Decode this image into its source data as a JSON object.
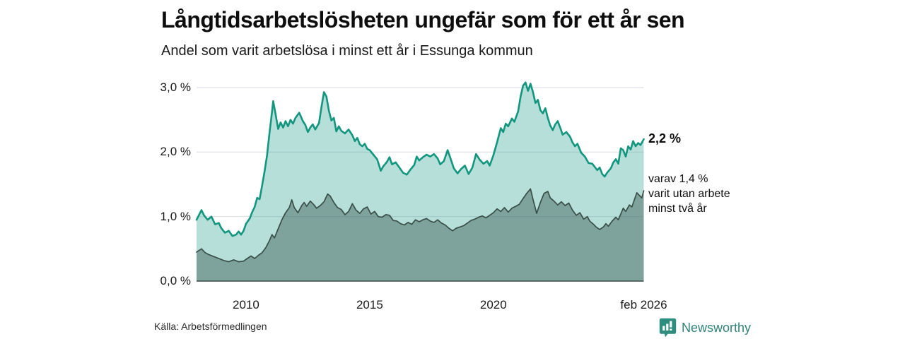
{
  "header": {
    "title": "Långtidsarbetslösheten ungefär som för ett år sen",
    "subtitle": "Andel som varit arbetslösa i minst ett år i Essunga kommun"
  },
  "footer": {
    "source": "Källa: Arbetsförmedlingen",
    "brand": "Newsworthy",
    "brand_color": "#31837a"
  },
  "chart_data": {
    "type": "area",
    "title": "Långtidsarbetslösheten ungefär som för ett år sen",
    "subtitle": "Andel som varit arbetslösa i minst ett år i Essunga kommun",
    "unit": "percent",
    "grid": "horizontal",
    "x_axis": {
      "range": [
        2008.0,
        2026.08
      ],
      "ticks": [
        {
          "label": "2010",
          "value": 2010
        },
        {
          "label": "2015",
          "value": 2015
        },
        {
          "label": "2020",
          "value": 2020
        },
        {
          "label": "feb 2026",
          "value": 2026.08
        }
      ]
    },
    "y_axis": {
      "range": [
        0,
        3.3
      ],
      "ticks": [
        {
          "label": "0,0 %",
          "value": 0
        },
        {
          "label": "1,0 %",
          "value": 1
        },
        {
          "label": "2,0 %",
          "value": 2
        },
        {
          "label": "3,0 %",
          "value": 3
        }
      ]
    },
    "colors": {
      "series1_line": "#12967f",
      "series1_fill": "rgba(18,150,132,0.30)",
      "series2_line": "#3a4e47",
      "series2_fill": "rgba(58,90,80,0.45)",
      "gridline": "#dfdfe6",
      "baseline": "#3a4e47"
    },
    "annotations": [
      {
        "text": "2,2 %",
        "value": 2.2,
        "bold": true
      },
      {
        "lines": [
          "varav 1,4 %",
          "varit utan arbete",
          "minst två år"
        ],
        "value": 1.4,
        "bold": false
      }
    ],
    "series": [
      {
        "name": "Andel arbetslösa minst ett år",
        "last_value": 2.2,
        "points": [
          [
            2008.0,
            0.95
          ],
          [
            2008.2,
            1.1
          ],
          [
            2008.3,
            1.02
          ],
          [
            2008.45,
            0.95
          ],
          [
            2008.6,
            1.0
          ],
          [
            2008.75,
            0.88
          ],
          [
            2008.9,
            0.9
          ],
          [
            2009.0,
            0.82
          ],
          [
            2009.15,
            0.75
          ],
          [
            2009.3,
            0.78
          ],
          [
            2009.45,
            0.7
          ],
          [
            2009.6,
            0.72
          ],
          [
            2009.7,
            0.77
          ],
          [
            2009.8,
            0.72
          ],
          [
            2009.9,
            0.78
          ],
          [
            2010.0,
            0.89
          ],
          [
            2010.15,
            0.97
          ],
          [
            2010.25,
            1.07
          ],
          [
            2010.35,
            1.15
          ],
          [
            2010.45,
            1.29
          ],
          [
            2010.55,
            1.27
          ],
          [
            2010.65,
            1.48
          ],
          [
            2010.75,
            1.7
          ],
          [
            2010.85,
            1.95
          ],
          [
            2010.95,
            2.3
          ],
          [
            2011.05,
            2.62
          ],
          [
            2011.1,
            2.79
          ],
          [
            2011.2,
            2.58
          ],
          [
            2011.3,
            2.36
          ],
          [
            2011.4,
            2.46
          ],
          [
            2011.5,
            2.38
          ],
          [
            2011.6,
            2.48
          ],
          [
            2011.7,
            2.4
          ],
          [
            2011.8,
            2.5
          ],
          [
            2011.9,
            2.44
          ],
          [
            2012.0,
            2.53
          ],
          [
            2012.15,
            2.61
          ],
          [
            2012.3,
            2.48
          ],
          [
            2012.4,
            2.42
          ],
          [
            2012.5,
            2.31
          ],
          [
            2012.6,
            2.38
          ],
          [
            2012.7,
            2.43
          ],
          [
            2012.8,
            2.35
          ],
          [
            2012.95,
            2.45
          ],
          [
            2013.05,
            2.7
          ],
          [
            2013.15,
            2.93
          ],
          [
            2013.25,
            2.86
          ],
          [
            2013.35,
            2.64
          ],
          [
            2013.45,
            2.49
          ],
          [
            2013.55,
            2.53
          ],
          [
            2013.65,
            2.32
          ],
          [
            2013.75,
            2.4
          ],
          [
            2013.85,
            2.33
          ],
          [
            2014.0,
            2.29
          ],
          [
            2014.15,
            2.35
          ],
          [
            2014.3,
            2.26
          ],
          [
            2014.4,
            2.17
          ],
          [
            2014.5,
            2.22
          ],
          [
            2014.6,
            2.12
          ],
          [
            2014.7,
            2.09
          ],
          [
            2014.8,
            2.13
          ],
          [
            2014.9,
            2.05
          ],
          [
            2015.0,
            2.03
          ],
          [
            2015.15,
            1.96
          ],
          [
            2015.3,
            1.89
          ],
          [
            2015.45,
            1.71
          ],
          [
            2015.55,
            1.78
          ],
          [
            2015.7,
            1.85
          ],
          [
            2015.8,
            1.92
          ],
          [
            2015.9,
            1.81
          ],
          [
            2016.05,
            1.84
          ],
          [
            2016.2,
            1.76
          ],
          [
            2016.35,
            1.68
          ],
          [
            2016.5,
            1.65
          ],
          [
            2016.65,
            1.73
          ],
          [
            2016.8,
            1.8
          ],
          [
            2016.9,
            1.93
          ],
          [
            2017.0,
            1.87
          ],
          [
            2017.15,
            1.92
          ],
          [
            2017.3,
            1.96
          ],
          [
            2017.45,
            1.93
          ],
          [
            2017.6,
            1.97
          ],
          [
            2017.75,
            1.9
          ],
          [
            2017.85,
            1.81
          ],
          [
            2018.0,
            1.86
          ],
          [
            2018.15,
            2.03
          ],
          [
            2018.25,
            1.92
          ],
          [
            2018.4,
            1.75
          ],
          [
            2018.55,
            1.67
          ],
          [
            2018.7,
            1.74
          ],
          [
            2018.85,
            1.79
          ],
          [
            2019.0,
            1.66
          ],
          [
            2019.15,
            1.76
          ],
          [
            2019.3,
            1.97
          ],
          [
            2019.45,
            1.88
          ],
          [
            2019.6,
            1.82
          ],
          [
            2019.75,
            1.86
          ],
          [
            2019.85,
            1.79
          ],
          [
            2020.0,
            1.95
          ],
          [
            2020.15,
            2.15
          ],
          [
            2020.3,
            2.37
          ],
          [
            2020.4,
            2.31
          ],
          [
            2020.5,
            2.44
          ],
          [
            2020.6,
            2.4
          ],
          [
            2020.75,
            2.52
          ],
          [
            2020.85,
            2.47
          ],
          [
            2021.0,
            2.63
          ],
          [
            2021.1,
            2.86
          ],
          [
            2021.2,
            3.03
          ],
          [
            2021.3,
            3.08
          ],
          [
            2021.4,
            2.95
          ],
          [
            2021.5,
            3.06
          ],
          [
            2021.6,
            2.93
          ],
          [
            2021.7,
            2.76
          ],
          [
            2021.8,
            2.81
          ],
          [
            2021.9,
            2.65
          ],
          [
            2022.0,
            2.6
          ],
          [
            2022.1,
            2.68
          ],
          [
            2022.2,
            2.53
          ],
          [
            2022.3,
            2.41
          ],
          [
            2022.4,
            2.34
          ],
          [
            2022.5,
            2.43
          ],
          [
            2022.6,
            2.48
          ],
          [
            2022.7,
            2.38
          ],
          [
            2022.8,
            2.27
          ],
          [
            2022.95,
            2.31
          ],
          [
            2023.1,
            2.24
          ],
          [
            2023.2,
            2.15
          ],
          [
            2023.3,
            2.09
          ],
          [
            2023.4,
            2.13
          ],
          [
            2023.55,
            1.99
          ],
          [
            2023.7,
            1.93
          ],
          [
            2023.85,
            1.83
          ],
          [
            2024.0,
            1.82
          ],
          [
            2024.1,
            1.77
          ],
          [
            2024.2,
            1.72
          ],
          [
            2024.3,
            1.76
          ],
          [
            2024.4,
            1.66
          ],
          [
            2024.5,
            1.62
          ],
          [
            2024.6,
            1.68
          ],
          [
            2024.75,
            1.75
          ],
          [
            2024.85,
            1.84
          ],
          [
            2024.95,
            1.89
          ],
          [
            2025.05,
            1.82
          ],
          [
            2025.15,
            2.06
          ],
          [
            2025.25,
            2.03
          ],
          [
            2025.35,
            1.93
          ],
          [
            2025.45,
            2.09
          ],
          [
            2025.55,
            2.04
          ],
          [
            2025.65,
            2.17
          ],
          [
            2025.75,
            2.09
          ],
          [
            2025.85,
            2.14
          ],
          [
            2025.95,
            2.11
          ],
          [
            2026.08,
            2.2
          ]
        ]
      },
      {
        "name": "varav utan arbete minst två år",
        "last_value": 1.4,
        "points": [
          [
            2008.0,
            0.45
          ],
          [
            2008.2,
            0.5
          ],
          [
            2008.35,
            0.44
          ],
          [
            2008.5,
            0.41
          ],
          [
            2008.7,
            0.38
          ],
          [
            2008.9,
            0.35
          ],
          [
            2009.1,
            0.32
          ],
          [
            2009.3,
            0.3
          ],
          [
            2009.5,
            0.33
          ],
          [
            2009.7,
            0.3
          ],
          [
            2009.9,
            0.31
          ],
          [
            2010.05,
            0.35
          ],
          [
            2010.2,
            0.39
          ],
          [
            2010.35,
            0.35
          ],
          [
            2010.5,
            0.4
          ],
          [
            2010.65,
            0.44
          ],
          [
            2010.8,
            0.52
          ],
          [
            2010.95,
            0.63
          ],
          [
            2011.05,
            0.72
          ],
          [
            2011.15,
            0.67
          ],
          [
            2011.3,
            0.81
          ],
          [
            2011.45,
            0.95
          ],
          [
            2011.6,
            1.06
          ],
          [
            2011.75,
            1.14
          ],
          [
            2011.85,
            1.26
          ],
          [
            2011.95,
            1.14
          ],
          [
            2012.1,
            1.06
          ],
          [
            2012.25,
            1.17
          ],
          [
            2012.35,
            1.22
          ],
          [
            2012.45,
            1.16
          ],
          [
            2012.6,
            1.24
          ],
          [
            2012.75,
            1.18
          ],
          [
            2012.85,
            1.13
          ],
          [
            2013.0,
            1.17
          ],
          [
            2013.15,
            1.23
          ],
          [
            2013.3,
            1.35
          ],
          [
            2013.4,
            1.32
          ],
          [
            2013.55,
            1.22
          ],
          [
            2013.7,
            1.14
          ],
          [
            2013.85,
            1.11
          ],
          [
            2014.0,
            1.03
          ],
          [
            2014.15,
            1.08
          ],
          [
            2014.3,
            1.2
          ],
          [
            2014.45,
            1.1
          ],
          [
            2014.6,
            1.05
          ],
          [
            2014.75,
            1.12
          ],
          [
            2014.9,
            1.15
          ],
          [
            2015.05,
            1.04
          ],
          [
            2015.2,
            1.08
          ],
          [
            2015.35,
            1.0
          ],
          [
            2015.5,
            0.99
          ],
          [
            2015.65,
            1.03
          ],
          [
            2015.8,
            1.02
          ],
          [
            2015.95,
            0.94
          ],
          [
            2016.1,
            0.93
          ],
          [
            2016.25,
            0.89
          ],
          [
            2016.4,
            0.87
          ],
          [
            2016.55,
            0.91
          ],
          [
            2016.7,
            0.88
          ],
          [
            2016.85,
            0.95
          ],
          [
            2017.0,
            0.92
          ],
          [
            2017.15,
            0.95
          ],
          [
            2017.3,
            0.97
          ],
          [
            2017.45,
            0.93
          ],
          [
            2017.6,
            0.91
          ],
          [
            2017.75,
            0.95
          ],
          [
            2017.9,
            0.9
          ],
          [
            2018.05,
            0.87
          ],
          [
            2018.2,
            0.82
          ],
          [
            2018.35,
            0.78
          ],
          [
            2018.5,
            0.82
          ],
          [
            2018.65,
            0.84
          ],
          [
            2018.8,
            0.86
          ],
          [
            2018.95,
            0.9
          ],
          [
            2019.1,
            0.94
          ],
          [
            2019.25,
            0.96
          ],
          [
            2019.4,
            0.99
          ],
          [
            2019.55,
            1.01
          ],
          [
            2019.7,
            0.98
          ],
          [
            2019.85,
            1.02
          ],
          [
            2020.0,
            1.06
          ],
          [
            2020.15,
            1.12
          ],
          [
            2020.3,
            1.08
          ],
          [
            2020.45,
            1.14
          ],
          [
            2020.6,
            1.07
          ],
          [
            2020.75,
            1.13
          ],
          [
            2020.9,
            1.16
          ],
          [
            2021.05,
            1.19
          ],
          [
            2021.2,
            1.28
          ],
          [
            2021.35,
            1.36
          ],
          [
            2021.5,
            1.43
          ],
          [
            2021.6,
            1.27
          ],
          [
            2021.75,
            1.05
          ],
          [
            2021.9,
            1.22
          ],
          [
            2022.05,
            1.36
          ],
          [
            2022.2,
            1.39
          ],
          [
            2022.3,
            1.29
          ],
          [
            2022.45,
            1.24
          ],
          [
            2022.6,
            1.18
          ],
          [
            2022.75,
            1.23
          ],
          [
            2022.9,
            1.17
          ],
          [
            2023.05,
            1.21
          ],
          [
            2023.2,
            1.1
          ],
          [
            2023.35,
            1.02
          ],
          [
            2023.5,
            1.06
          ],
          [
            2023.65,
            0.96
          ],
          [
            2023.8,
            1.0
          ],
          [
            2023.9,
            0.93
          ],
          [
            2024.05,
            0.88
          ],
          [
            2024.15,
            0.84
          ],
          [
            2024.3,
            0.8
          ],
          [
            2024.45,
            0.84
          ],
          [
            2024.55,
            0.89
          ],
          [
            2024.65,
            0.85
          ],
          [
            2024.8,
            0.93
          ],
          [
            2024.95,
            0.99
          ],
          [
            2025.05,
            0.95
          ],
          [
            2025.15,
            1.04
          ],
          [
            2025.25,
            1.13
          ],
          [
            2025.35,
            1.08
          ],
          [
            2025.5,
            1.18
          ],
          [
            2025.6,
            1.15
          ],
          [
            2025.7,
            1.26
          ],
          [
            2025.8,
            1.37
          ],
          [
            2025.9,
            1.33
          ],
          [
            2026.0,
            1.29
          ],
          [
            2026.08,
            1.4
          ]
        ]
      }
    ]
  }
}
